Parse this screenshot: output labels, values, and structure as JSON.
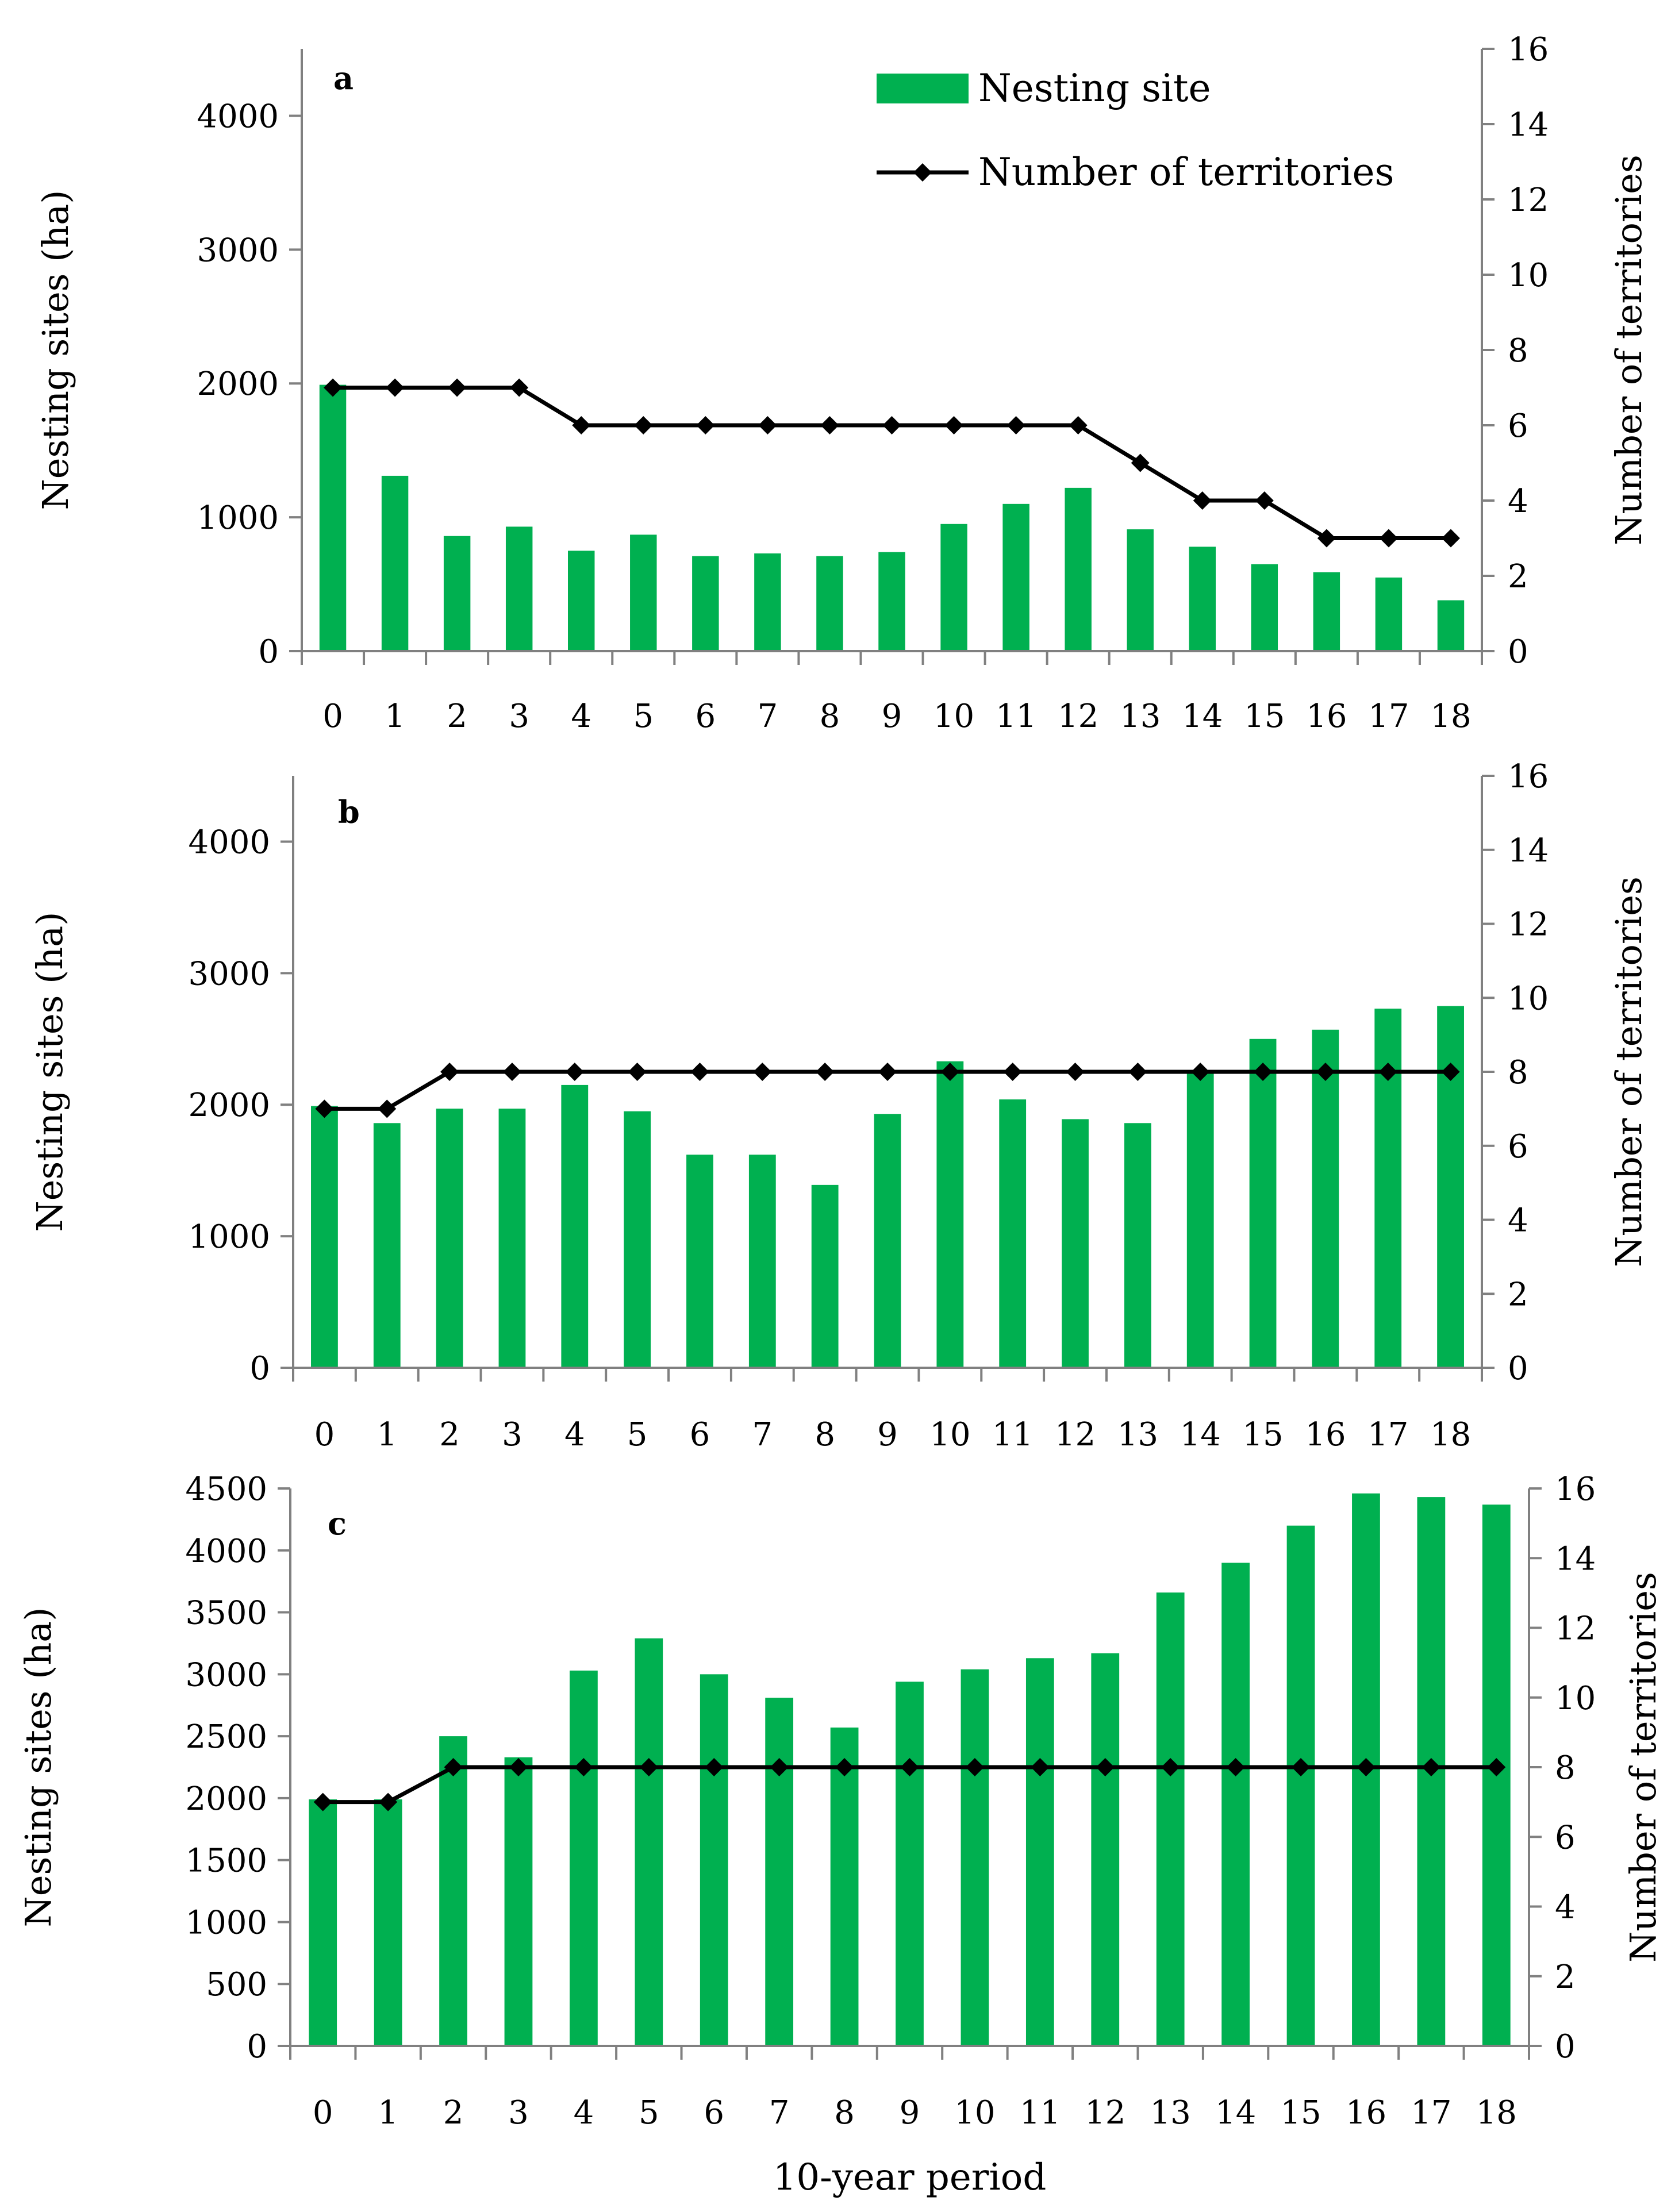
{
  "chart_data": [
    {
      "type": "bar",
      "panel": "a",
      "categories": [
        "0",
        "1",
        "2",
        "3",
        "4",
        "5",
        "6",
        "7",
        "8",
        "9",
        "10",
        "11",
        "12",
        "13",
        "14",
        "15",
        "16",
        "17",
        "18"
      ],
      "series": [
        {
          "name": "Nesting site",
          "type": "bar",
          "axis": "left",
          "values": [
            1990,
            1310,
            860,
            930,
            750,
            870,
            710,
            730,
            710,
            740,
            950,
            1100,
            1220,
            910,
            780,
            650,
            590,
            550,
            380
          ]
        },
        {
          "name": "Number of territories",
          "type": "line",
          "axis": "right",
          "values": [
            7,
            7,
            7,
            7,
            6,
            6,
            6,
            6,
            6,
            6,
            6,
            6,
            6,
            5,
            4,
            4,
            3,
            3,
            3
          ]
        }
      ],
      "ylabel": "Nesting sites (ha)",
      "y2label": "Number of territories",
      "ylim": [
        0,
        4500
      ],
      "yticks": [
        "0",
        "1000",
        "2000",
        "3000",
        "4000"
      ],
      "y2lim": [
        0,
        16
      ],
      "y2ticks": [
        "0",
        "2",
        "4",
        "6",
        "8",
        "10",
        "12",
        "14",
        "16"
      ],
      "legend": {
        "position": "top-right",
        "entries": [
          "Nesting site",
          "Number of territories"
        ]
      }
    },
    {
      "type": "bar",
      "panel": "b",
      "categories": [
        "0",
        "1",
        "2",
        "3",
        "4",
        "5",
        "6",
        "7",
        "8",
        "9",
        "10",
        "11",
        "12",
        "13",
        "14",
        "15",
        "16",
        "17",
        "18"
      ],
      "series": [
        {
          "name": "Nesting site",
          "type": "bar",
          "axis": "left",
          "values": [
            1990,
            1860,
            1970,
            1970,
            2150,
            1950,
            1620,
            1620,
            1390,
            1930,
            2330,
            2040,
            1890,
            1860,
            2260,
            2500,
            2570,
            2730,
            2750
          ]
        },
        {
          "name": "Number of territories",
          "type": "line",
          "axis": "right",
          "values": [
            7,
            7,
            8,
            8,
            8,
            8,
            8,
            8,
            8,
            8,
            8,
            8,
            8,
            8,
            8,
            8,
            8,
            8,
            8
          ]
        }
      ],
      "ylabel": "Nesting sites (ha)",
      "y2label": "Number of territories",
      "ylim": [
        0,
        4500
      ],
      "yticks": [
        "0",
        "1000",
        "2000",
        "3000",
        "4000"
      ],
      "y2lim": [
        0,
        16
      ],
      "y2ticks": [
        "0",
        "2",
        "4",
        "6",
        "8",
        "10",
        "12",
        "14",
        "16"
      ]
    },
    {
      "type": "bar",
      "panel": "c",
      "categories": [
        "0",
        "1",
        "2",
        "3",
        "4",
        "5",
        "6",
        "7",
        "8",
        "9",
        "10",
        "11",
        "12",
        "13",
        "14",
        "15",
        "16",
        "17",
        "18"
      ],
      "series": [
        {
          "name": "Nesting site",
          "type": "bar",
          "axis": "left",
          "values": [
            1990,
            1990,
            2500,
            2330,
            3030,
            3290,
            3000,
            2810,
            2570,
            2940,
            3040,
            3130,
            3170,
            3660,
            3900,
            4200,
            4460,
            4430,
            4370
          ]
        },
        {
          "name": "Number of territories",
          "type": "line",
          "axis": "right",
          "values": [
            7,
            7,
            8,
            8,
            8,
            8,
            8,
            8,
            8,
            8,
            8,
            8,
            8,
            8,
            8,
            8,
            8,
            8,
            8
          ]
        }
      ],
      "ylabel": "Nesting sites (ha)",
      "y2label": "Number of territories",
      "xlabel": "10-year period",
      "ylim": [
        0,
        4500
      ],
      "yticks": [
        "0",
        "500",
        "1000",
        "1500",
        "2000",
        "2500",
        "3000",
        "3500",
        "4000",
        "4500"
      ],
      "y2lim": [
        0,
        16
      ],
      "y2ticks": [
        "0",
        "2",
        "4",
        "6",
        "8",
        "10",
        "12",
        "14",
        "16"
      ]
    }
  ],
  "colors": {
    "bar": "#00b050",
    "line": "#000000",
    "axis": "#808080"
  }
}
